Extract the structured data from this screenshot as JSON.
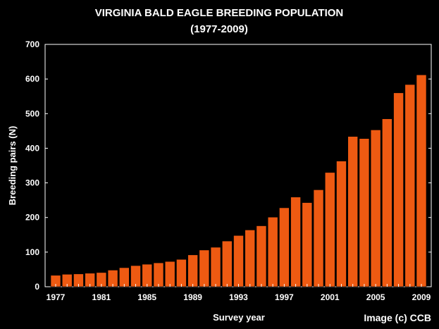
{
  "chart_data": {
    "type": "bar",
    "title": "VIRGINIA BALD EAGLE BREEDING POPULATION",
    "subtitle": "(1977-2009)",
    "xlabel": "Survey year",
    "ylabel": "Breeding pairs (N)",
    "credit": "Image (c) CCB",
    "ylim": [
      0,
      700
    ],
    "yticks": [
      "0",
      "100",
      "200",
      "300",
      "400",
      "500",
      "600",
      "700"
    ],
    "xticks": [
      "1977",
      "1981",
      "1985",
      "1989",
      "1993",
      "1997",
      "2001",
      "2005",
      "2009"
    ],
    "grid": false,
    "bar_color": "#ee5a12",
    "categories": [
      "1977",
      "1978",
      "1979",
      "1980",
      "1981",
      "1982",
      "1983",
      "1984",
      "1985",
      "1986",
      "1987",
      "1988",
      "1989",
      "1990",
      "1991",
      "1992",
      "1993",
      "1994",
      "1995",
      "1996",
      "1997",
      "1998",
      "1999",
      "2000",
      "2001",
      "2002",
      "2003",
      "2004",
      "2005",
      "2006",
      "2007",
      "2008",
      "2009"
    ],
    "values": [
      33,
      36,
      37,
      39,
      41,
      48,
      55,
      61,
      65,
      69,
      73,
      79,
      92,
      106,
      114,
      132,
      148,
      164,
      176,
      201,
      228,
      259,
      243,
      280,
      330,
      363,
      434,
      428,
      453,
      485,
      560,
      584,
      612
    ]
  }
}
